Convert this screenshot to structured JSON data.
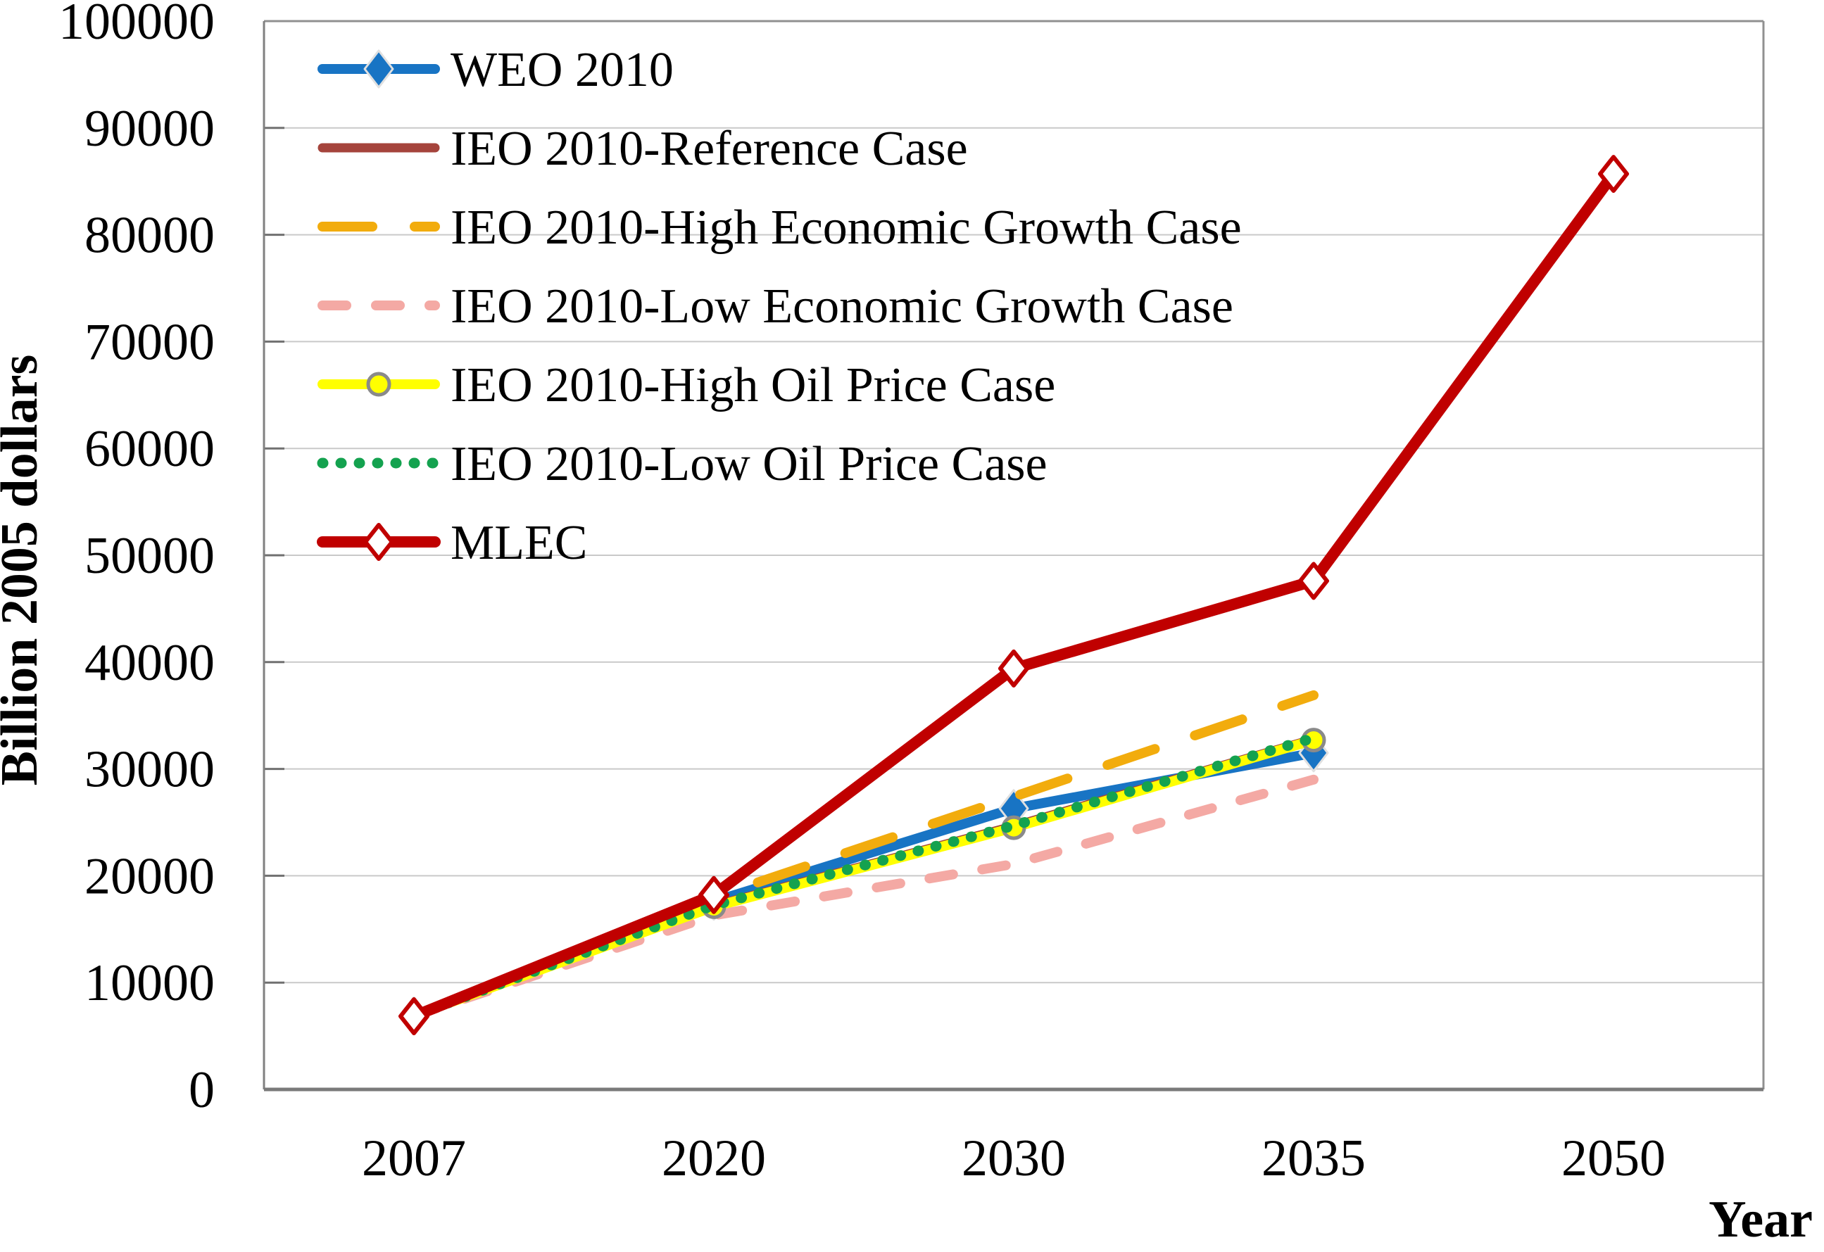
{
  "chart_data": {
    "type": "line",
    "title": "",
    "xlabel": "Year",
    "ylabel": "Billion 2005 dollars",
    "ylim": [
      0,
      100000
    ],
    "y_tick_step": 10000,
    "y_ticks": [
      "0",
      "10000",
      "20000",
      "30000",
      "40000",
      "50000",
      "60000",
      "70000",
      "80000",
      "90000",
      "100000"
    ],
    "grid": "horizontal",
    "legend_position": "top-left-inside",
    "categories": [
      "2007",
      "2020",
      "2030",
      "2035",
      "2050"
    ],
    "series": [
      {
        "name": "WEO 2010",
        "color": "#1874C4",
        "line_style": "solid",
        "line_width": 14,
        "marker": "diamond-filled",
        "marker_fill": "#1874C4",
        "marker_stroke": "#E0E0E0",
        "values": [
          6900,
          17600,
          26300,
          31500,
          null
        ]
      },
      {
        "name": "IEO 2010-Reference Case",
        "color": "#A5443C",
        "line_style": "solid",
        "line_width": 13,
        "marker": "none",
        "marker_fill": "",
        "marker_stroke": "",
        "values": [
          6900,
          17200,
          24650,
          32800,
          null
        ]
      },
      {
        "name": "IEO 2010-High Economic Growth Case",
        "color": "#F2AC0D",
        "line_style": "long-dash",
        "line_width": 14,
        "marker": "none",
        "marker_fill": "",
        "marker_stroke": "",
        "values": [
          6900,
          18000,
          27400,
          36900,
          null
        ]
      },
      {
        "name": "IEO 2010-Low Economic Growth Case",
        "color": "#F4A9A4",
        "line_style": "dash",
        "line_width": 14,
        "marker": "none",
        "marker_fill": "",
        "marker_stroke": "",
        "values": [
          6900,
          16300,
          21100,
          29000,
          null
        ]
      },
      {
        "name": "IEO 2010-High Oil Price Case",
        "color": "#FFFF00",
        "line_style": "solid",
        "line_width": 14,
        "marker": "circle-open",
        "marker_fill": "#FFFF00",
        "marker_stroke": "#8A8A8A",
        "values": [
          6900,
          17100,
          24500,
          32700,
          null
        ]
      },
      {
        "name": "IEO 2010-Low Oil Price Case",
        "color": "#14A24F",
        "line_style": "dot",
        "line_width": 15,
        "marker": "none",
        "marker_fill": "",
        "marker_stroke": "",
        "values": [
          6900,
          17250,
          24700,
          32900,
          null
        ]
      },
      {
        "name": "MLEC",
        "color": "#C00000",
        "line_style": "solid",
        "line_width": 16,
        "marker": "diamond-open",
        "marker_fill": "#FFFFFF",
        "marker_stroke": "#C00000",
        "values": [
          6850,
          18200,
          39400,
          47600,
          85700
        ]
      }
    ],
    "colors": {
      "gridline": "#C9C9C9",
      "plot_border": "#909090",
      "left_axis": "#808080",
      "bottom_axis": "#7A7A7A",
      "tick_mark": "#707070"
    }
  }
}
